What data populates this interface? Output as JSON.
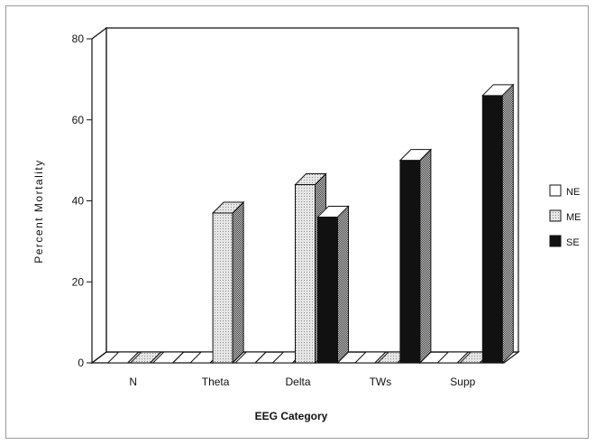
{
  "chart_data": {
    "type": "bar",
    "title": "",
    "xlabel": "EEG Category",
    "ylabel": "Percent  Mortality",
    "categories": [
      "N",
      "Theta",
      "Delta",
      "TWs",
      "Supp"
    ],
    "series": [
      {
        "name": "NE",
        "values": [
          0,
          0,
          0,
          0,
          0
        ]
      },
      {
        "name": "ME",
        "values": [
          0,
          37,
          44,
          0,
          0
        ]
      },
      {
        "name": "SE",
        "values": [
          0,
          0,
          36,
          50,
          66
        ]
      }
    ],
    "ylim": [
      0,
      80
    ],
    "yticks": [
      0,
      20,
      40,
      60,
      80
    ],
    "legend": "right",
    "grid": false,
    "style": "3d"
  },
  "colors": {
    "NE": "#ffffff",
    "ME": "#dcdcdc",
    "SE": "#111111",
    "side": "#8a8a8a",
    "axis": "#111111"
  }
}
